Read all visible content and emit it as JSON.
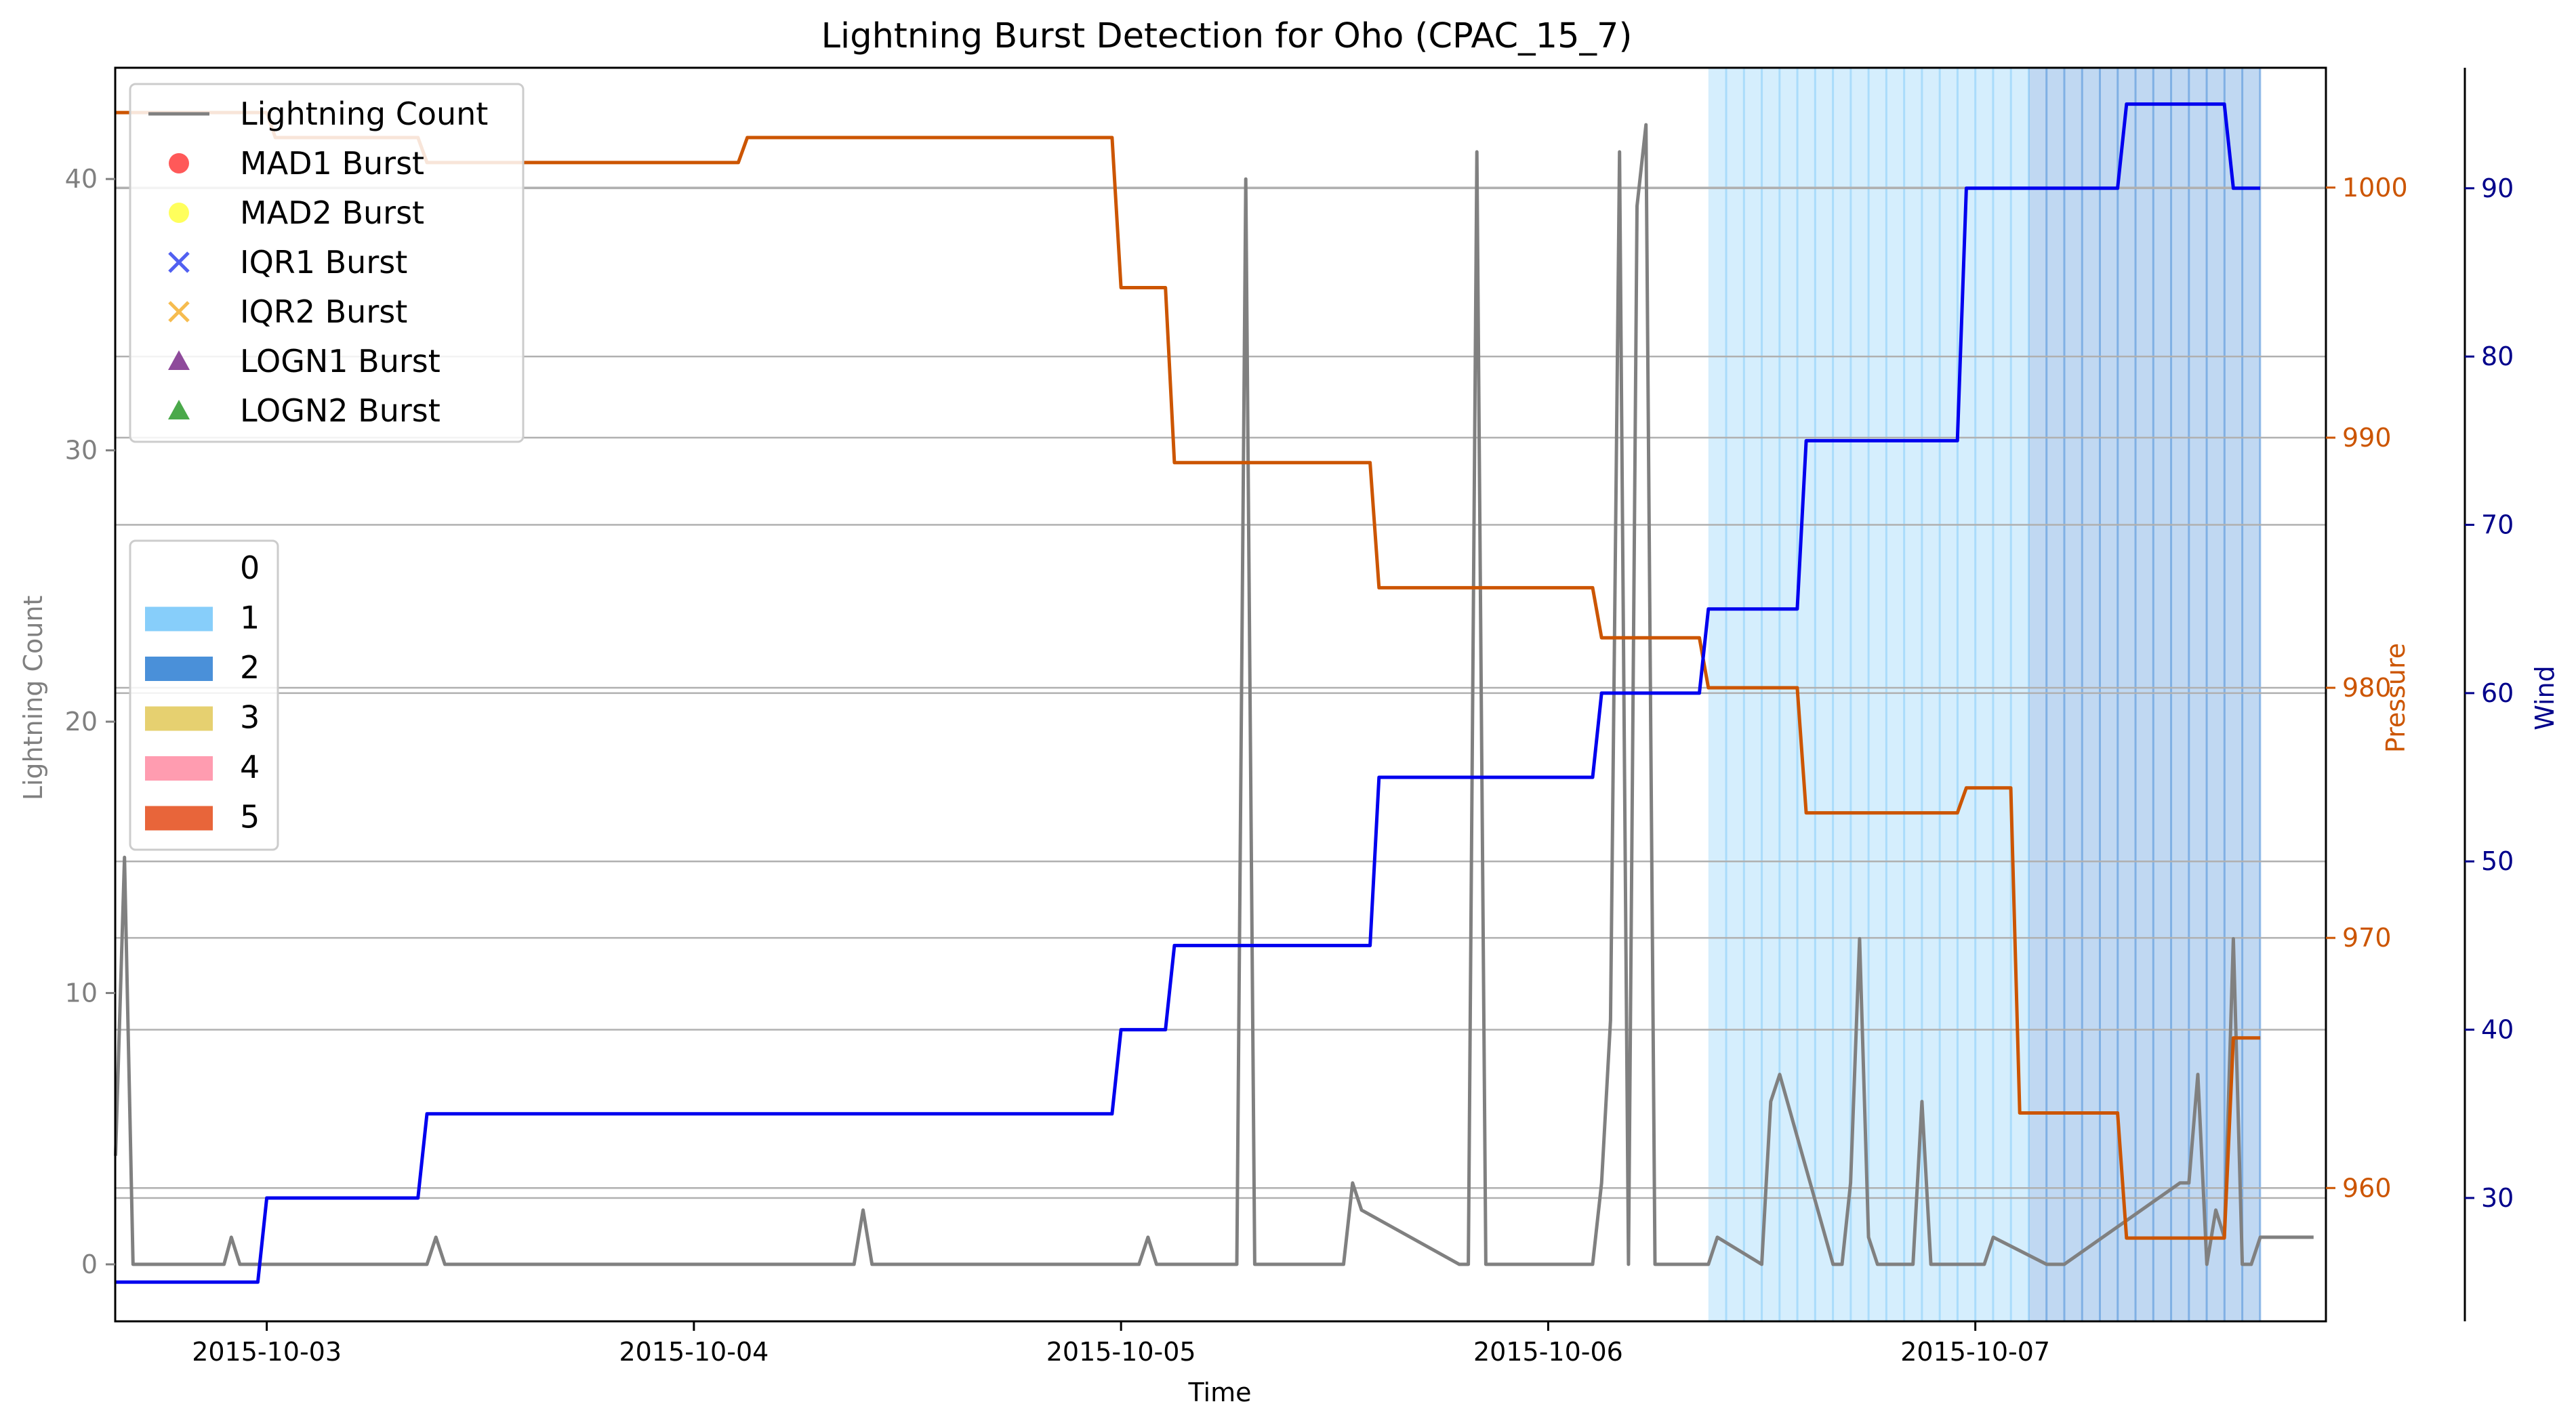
{
  "chart_data": {
    "type": "line",
    "title": "Lightning Burst Detection for Oho (CPAC_15_7)",
    "xlabel": "Time",
    "ylabel_left": "Lightning Count",
    "ylabel_pressure": "Pressure",
    "ylabel_wind": "Wind",
    "x_ticks": [
      "2015-10-03",
      "2015-10-04",
      "2015-10-05",
      "2015-10-06",
      "2015-10-07"
    ],
    "xlim": [
      -0.3548,
      4.8208
    ],
    "ylim_left": [
      -2.1,
      44.1
    ],
    "ylim_pressure": [
      954.67,
      1004.79
    ],
    "ylim_wind": [
      22.67,
      97.16
    ],
    "y_ticks_left": [
      0,
      10,
      20,
      30,
      40
    ],
    "y_ticks_pressure": [
      960,
      970,
      980,
      990,
      1000
    ],
    "y_ticks_wind": [
      30,
      40,
      50,
      60,
      70,
      80,
      90
    ],
    "grid": "horizontal",
    "colors": {
      "lightning": "#808080",
      "pressure": "#cc5500",
      "wind": "#0000ee",
      "cat1": "#87cefa",
      "cat2": "#4a90d9",
      "cat3": "#e6d070",
      "cat4": "#ff9cb0",
      "cat5": "#e8653a",
      "grid": "#b0b0b0",
      "left_axis": "#808080",
      "pressure_axis": "#cc5500",
      "wind_axis": "#00008b"
    },
    "series": [
      {
        "name": "Lightning Count",
        "axis": "left",
        "x": [
          -0.354,
          -0.333,
          -0.313,
          -0.1,
          -0.083,
          -0.063,
          0.375,
          0.396,
          0.417,
          1.375,
          1.396,
          1.417,
          2.042,
          2.063,
          2.083,
          2.271,
          2.292,
          2.313,
          2.521,
          2.542,
          2.563,
          2.792,
          2.813,
          2.833,
          2.854,
          2.875,
          2.896,
          2.917,
          2.938,
          3.104,
          3.125,
          3.146,
          3.167,
          3.188,
          3.208,
          3.229,
          3.25,
          3.271,
          3.292,
          3.313,
          3.333,
          3.354,
          3.375,
          3.396,
          3.5,
          3.521,
          3.542,
          3.667,
          3.688,
          3.708,
          3.729,
          3.75,
          3.771,
          3.792,
          3.813,
          3.833,
          3.854,
          3.875,
          3.896,
          4.0,
          4.021,
          4.042,
          4.167,
          4.188,
          4.208,
          4.479,
          4.5,
          4.521,
          4.542,
          4.563,
          4.583,
          4.604,
          4.625,
          4.646,
          4.667,
          4.688,
          4.708,
          4.771,
          4.792
        ],
        "values": [
          4,
          15,
          0,
          0,
          1,
          0,
          0,
          1,
          0,
          0,
          2,
          0,
          0,
          1,
          0,
          0,
          40,
          0,
          0,
          3,
          2,
          0,
          0,
          41,
          0,
          0,
          0,
          0,
          0,
          0,
          3,
          9,
          41,
          0,
          39,
          42,
          0,
          0,
          0,
          0,
          0,
          0,
          0,
          1,
          0,
          6,
          7,
          0,
          0,
          3,
          12,
          1,
          0,
          0,
          0,
          0,
          0,
          6,
          0,
          0,
          0,
          1,
          0,
          0,
          0,
          3,
          3,
          7,
          0,
          2,
          1,
          12,
          0,
          0,
          1,
          1,
          1,
          1,
          1
        ]
      },
      {
        "name": "Pressure",
        "axis": "pressure",
        "x": [
          -0.354,
          0.0,
          0.02,
          0.354,
          0.375,
          1.104,
          1.125,
          1.979,
          2.0,
          2.104,
          2.125,
          2.583,
          2.604,
          3.104,
          3.125,
          3.354,
          3.375,
          3.583,
          3.604,
          3.958,
          3.979,
          4.083,
          4.104,
          4.333,
          4.354,
          4.583,
          4.604,
          4.667
        ],
        "values": [
          1003,
          1003,
          1002,
          1002,
          1001,
          1001,
          1002,
          1002,
          996,
          996,
          989,
          989,
          984,
          984,
          982,
          982,
          980,
          980,
          975,
          975,
          976,
          976,
          963,
          963,
          958,
          958,
          966,
          966
        ]
      },
      {
        "name": "Wind",
        "axis": "wind",
        "x": [
          -0.354,
          -0.021,
          0.0,
          0.354,
          0.375,
          1.979,
          2.0,
          2.104,
          2.125,
          2.583,
          2.604,
          3.104,
          3.125,
          3.354,
          3.375,
          3.583,
          3.604,
          3.958,
          3.979,
          4.083,
          4.104,
          4.333,
          4.354,
          4.583,
          4.604,
          4.667
        ],
        "values": [
          25,
          25,
          30,
          30,
          35,
          35,
          40,
          40,
          45,
          45,
          55,
          55,
          60,
          60,
          65,
          65,
          75,
          75,
          90,
          90,
          90,
          90,
          95,
          95,
          90,
          90
        ]
      }
    ],
    "category_shading": [
      {
        "category": "1",
        "from": 3.375,
        "to": 4.125
      },
      {
        "category": "2",
        "from": 4.125,
        "to": 4.667
      }
    ],
    "legend_series": {
      "placement": "upper-left",
      "entries": [
        {
          "label": "Lightning Count",
          "marker": "line",
          "color": "#808080"
        },
        {
          "label": "MAD1 Burst",
          "marker": "circle",
          "color": "#ff3030"
        },
        {
          "label": "MAD2 Burst",
          "marker": "circle",
          "color": "#ffff33"
        },
        {
          "label": "IQR1 Burst",
          "marker": "x",
          "color": "#3344ee"
        },
        {
          "label": "IQR2 Burst",
          "marker": "x",
          "color": "#f5b030"
        },
        {
          "label": "LOGN1 Burst",
          "marker": "triangle",
          "color": "#7a2a8a"
        },
        {
          "label": "LOGN2 Burst",
          "marker": "triangle",
          "color": "#2a9a2a"
        }
      ]
    },
    "legend_categories": {
      "placement": "center-left",
      "entries": [
        {
          "label": "0",
          "color": "#ffffff"
        },
        {
          "label": "1",
          "color": "#87cefa"
        },
        {
          "label": "2",
          "color": "#4a90d9"
        },
        {
          "label": "3",
          "color": "#e6d070"
        },
        {
          "label": "4",
          "color": "#ff9cb0"
        },
        {
          "label": "5",
          "color": "#e8653a"
        }
      ]
    }
  }
}
